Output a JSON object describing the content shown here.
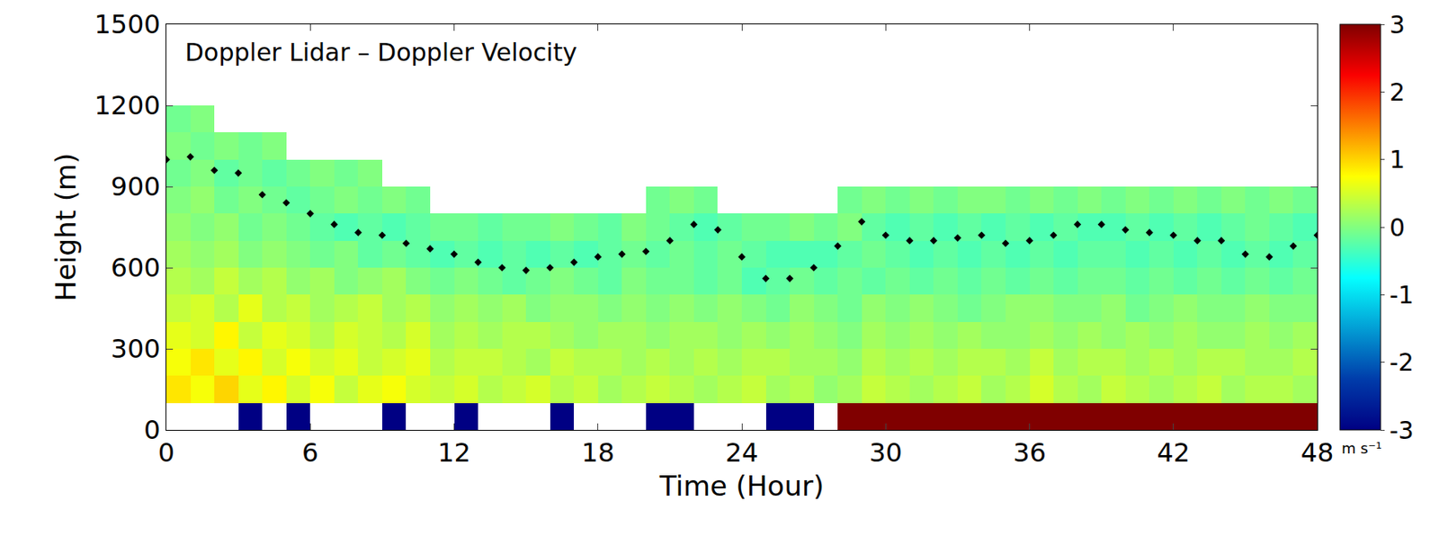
{
  "chart_data": {
    "type": "heatmap",
    "title": "Doppler Lidar – Doppler Velocity",
    "x_label": "Time (Hour)",
    "y_label": "Height (m)",
    "xlim": [
      0,
      48
    ],
    "xticks": [
      0,
      6,
      12,
      18,
      24,
      30,
      36,
      42,
      48
    ],
    "ylim": [
      0,
      1500
    ],
    "yticks": [
      0,
      300,
      600,
      900,
      1200,
      1500
    ],
    "grid": false,
    "heatmap": {
      "x": [
        0.5,
        1.5,
        2.5,
        3.5,
        4.5,
        5.5,
        6.5,
        7.5,
        8.5,
        9.5,
        10.5,
        11.5,
        12.5,
        13.5,
        14.5,
        15.5,
        16.5,
        17.5,
        18.5,
        19.5,
        20.5,
        21.5,
        22.5,
        23.5,
        24.5,
        25.5,
        26.5,
        27.5,
        28.5,
        29.5,
        30.5,
        31.5,
        32.5,
        33.5,
        34.5,
        35.5,
        36.5,
        37.5,
        38.5,
        39.5,
        40.5,
        41.5,
        42.5,
        43.5,
        44.5,
        45.5,
        46.5,
        47.5
      ],
      "y": [
        50,
        150,
        250,
        350,
        450,
        550,
        650,
        750,
        850,
        950,
        1050,
        1150
      ],
      "z": [
        [
          null,
          null,
          null,
          -3,
          null,
          -3,
          null,
          null,
          null,
          -3,
          null,
          null,
          -3,
          null,
          null,
          null,
          -3,
          null,
          null,
          null,
          -3,
          -3,
          null,
          null,
          null,
          -3,
          -3,
          null,
          3,
          3,
          3,
          3,
          3,
          3,
          3,
          3,
          3,
          3,
          3,
          3,
          3,
          3,
          3,
          3,
          3,
          3,
          3,
          3
        ],
        [
          0.9,
          0.7,
          1.0,
          0.6,
          0.8,
          0.5,
          0.7,
          0.4,
          0.6,
          0.7,
          0.5,
          0.4,
          0.5,
          0.3,
          0.4,
          0.5,
          0.3,
          0.4,
          0.2,
          0.3,
          0.4,
          0.3,
          0.2,
          0.3,
          0.4,
          0.2,
          0.3,
          0.1,
          0.2,
          0.4,
          0.3,
          0.2,
          0.3,
          0.4,
          0.2,
          0.3,
          0.5,
          0.3,
          0.2,
          0.4,
          0.3,
          0.2,
          0.3,
          0.4,
          0.2,
          0.3,
          0.3,
          0.2
        ],
        [
          0.7,
          0.9,
          0.6,
          0.8,
          0.5,
          0.7,
          0.5,
          0.6,
          0.4,
          0.5,
          0.6,
          0.3,
          0.4,
          0.4,
          0.3,
          0.2,
          0.4,
          0.3,
          0.3,
          0.2,
          0.3,
          0.2,
          0.3,
          0.2,
          0.3,
          0.3,
          0.2,
          0.2,
          0.1,
          0.3,
          0.2,
          0.3,
          0.2,
          0.3,
          0.3,
          0.2,
          0.4,
          0.2,
          0.3,
          0.3,
          0.2,
          0.3,
          0.2,
          0.3,
          0.3,
          0.2,
          0.2,
          0.3
        ],
        [
          0.6,
          0.5,
          0.8,
          0.4,
          0.6,
          0.5,
          0.3,
          0.5,
          0.4,
          0.3,
          0.5,
          0.2,
          0.3,
          0.2,
          0.3,
          0.3,
          0.2,
          0.1,
          0.2,
          0.2,
          0.1,
          0.2,
          0.2,
          0.1,
          0.2,
          0.1,
          0.2,
          0.1,
          0.0,
          0.2,
          0.1,
          0.2,
          0.1,
          0.2,
          0.1,
          0.1,
          0.2,
          0.1,
          0.2,
          0.1,
          0.2,
          0.1,
          0.2,
          0.1,
          0.1,
          0.2,
          0.1,
          0.2
        ],
        [
          0.4,
          0.5,
          0.3,
          0.6,
          0.3,
          0.4,
          0.2,
          0.3,
          0.4,
          0.2,
          0.3,
          0.1,
          0.2,
          0.1,
          0.2,
          0.0,
          0.1,
          0.1,
          0.0,
          0.1,
          0.0,
          0.1,
          0.0,
          0.1,
          0.0,
          -0.1,
          0.1,
          0.0,
          -0.1,
          0.1,
          0.0,
          0.1,
          0.0,
          -0.1,
          0.0,
          0.1,
          0.1,
          0.0,
          0.0,
          0.1,
          -0.1,
          0.0,
          0.1,
          0.0,
          0.0,
          0.1,
          0.0,
          0.0
        ],
        [
          0.3,
          0.2,
          0.4,
          0.2,
          0.3,
          0.1,
          0.2,
          0.0,
          0.1,
          0.2,
          0.0,
          -0.1,
          0.0,
          -0.1,
          -0.2,
          -0.1,
          0.0,
          -0.1,
          -0.2,
          0.0,
          -0.1,
          -0.1,
          -0.2,
          -0.1,
          -0.3,
          -0.2,
          -0.1,
          -0.2,
          -0.1,
          -0.2,
          -0.1,
          -0.2,
          -0.1,
          -0.2,
          -0.1,
          -0.2,
          -0.1,
          -0.2,
          -0.1,
          -0.1,
          -0.2,
          -0.1,
          -0.2,
          -0.1,
          -0.2,
          -0.1,
          -0.2,
          -0.1
        ],
        [
          0.2,
          0.1,
          0.2,
          0.0,
          0.1,
          0.0,
          -0.1,
          0.0,
          -0.2,
          -0.1,
          -0.2,
          -0.3,
          -0.2,
          -0.3,
          -0.2,
          -0.3,
          -0.2,
          -0.3,
          -0.2,
          -0.1,
          -0.2,
          -0.1,
          -0.2,
          -0.1,
          -0.2,
          -0.3,
          -0.3,
          -0.3,
          -0.2,
          -0.1,
          -0.2,
          -0.3,
          -0.2,
          -0.3,
          -0.2,
          -0.3,
          -0.2,
          -0.3,
          -0.2,
          -0.2,
          -0.3,
          -0.2,
          -0.3,
          -0.2,
          -0.3,
          -0.2,
          -0.3,
          -0.2
        ],
        [
          0.1,
          0.0,
          0.1,
          -0.1,
          0.0,
          -0.1,
          -0.2,
          -0.3,
          -0.2,
          -0.3,
          -0.2,
          -0.1,
          -0.1,
          -0.2,
          -0.1,
          -0.1,
          0.0,
          -0.1,
          -0.2,
          0.0,
          -0.1,
          -0.2,
          -0.3,
          -0.2,
          -0.1,
          -0.1,
          0.0,
          -0.1,
          0.0,
          -0.2,
          -0.3,
          -0.2,
          -0.3,
          -0.2,
          -0.3,
          -0.2,
          -0.3,
          -0.2,
          -0.3,
          -0.3,
          -0.2,
          -0.3,
          -0.2,
          -0.3,
          -0.2,
          -0.1,
          -0.2,
          -0.3
        ],
        [
          0.0,
          0.1,
          -0.1,
          0.0,
          -0.1,
          -0.2,
          -0.1,
          0.0,
          -0.1,
          0.0,
          -0.1,
          null,
          null,
          null,
          null,
          null,
          null,
          null,
          null,
          null,
          -0.1,
          0.0,
          -0.1,
          null,
          null,
          null,
          null,
          null,
          -0.1,
          0.0,
          -0.1,
          0.0,
          -0.1,
          0.0,
          0.0,
          -0.1,
          0.0,
          -0.1,
          0.0,
          -0.1,
          0.0,
          -0.1,
          0.0,
          -0.1,
          0.0,
          -0.1,
          0.0,
          -0.1
        ],
        [
          -0.1,
          0.0,
          -0.2,
          -0.1,
          -0.2,
          -0.1,
          0.0,
          -0.1,
          0.0,
          null,
          null,
          null,
          null,
          null,
          null,
          null,
          null,
          null,
          null,
          null,
          null,
          null,
          null,
          null,
          null,
          null,
          null,
          null,
          null,
          null,
          null,
          null,
          null,
          null,
          null,
          null,
          null,
          null,
          null,
          null,
          null,
          null,
          null,
          null,
          null,
          null,
          null,
          null
        ],
        [
          0.0,
          -0.1,
          0.0,
          -0.1,
          0.0,
          null,
          null,
          null,
          null,
          null,
          null,
          null,
          null,
          null,
          null,
          null,
          null,
          null,
          null,
          null,
          null,
          null,
          null,
          null,
          null,
          null,
          null,
          null,
          null,
          null,
          null,
          null,
          null,
          null,
          null,
          null,
          null,
          null,
          null,
          null,
          null,
          null,
          null,
          null,
          null,
          null,
          null,
          null
        ],
        [
          -0.1,
          0.0,
          null,
          null,
          null,
          null,
          null,
          null,
          null,
          null,
          null,
          null,
          null,
          null,
          null,
          null,
          null,
          null,
          null,
          null,
          null,
          null,
          null,
          null,
          null,
          null,
          null,
          null,
          null,
          null,
          null,
          null,
          null,
          null,
          null,
          null,
          null,
          null,
          null,
          null,
          null,
          null,
          null,
          null,
          null,
          null,
          null,
          null
        ]
      ],
      "color_range": [
        -3,
        3
      ],
      "color_ticks": [
        -3,
        -2,
        -1,
        0,
        1,
        2,
        3
      ],
      "colorbar_label": "m s⁻¹"
    },
    "series": [
      {
        "type": "scatter",
        "marker": "diamond",
        "color": "#000000",
        "x": [
          0,
          1,
          2,
          3,
          4,
          5,
          6,
          7,
          8,
          9,
          10,
          11,
          12,
          13,
          14,
          15,
          16,
          17,
          18,
          19,
          20,
          21,
          22,
          23,
          24,
          25,
          26,
          27,
          28,
          29,
          30,
          31,
          32,
          33,
          34,
          35,
          36,
          37,
          38,
          39,
          40,
          41,
          42,
          43,
          44,
          45,
          46,
          47,
          48
        ],
        "values": [
          1000,
          1010,
          960,
          950,
          870,
          840,
          800,
          760,
          730,
          720,
          690,
          670,
          650,
          620,
          600,
          590,
          600,
          620,
          640,
          650,
          660,
          700,
          760,
          740,
          640,
          560,
          560,
          600,
          680,
          770,
          720,
          700,
          700,
          710,
          720,
          690,
          700,
          720,
          760,
          760,
          740,
          730,
          720,
          700,
          700,
          650,
          640,
          680,
          720
        ]
      }
    ]
  }
}
